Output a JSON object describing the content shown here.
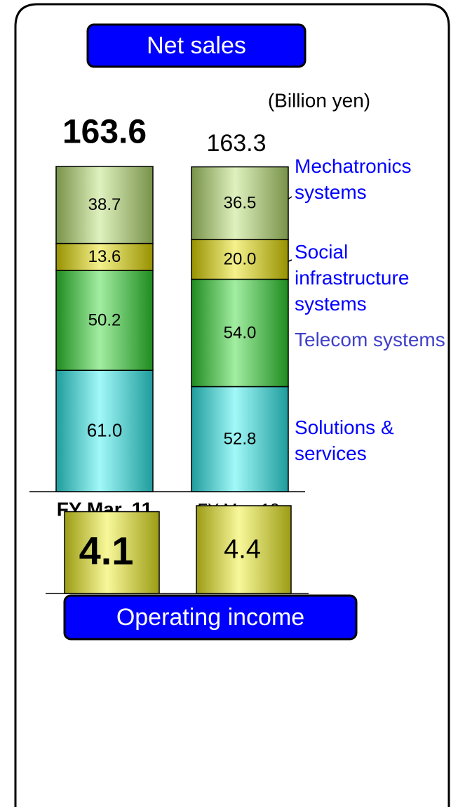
{
  "chart_data": [
    {
      "type": "stacked_bar",
      "title": "Net sales",
      "subtitle": "(Billion yen)",
      "categories": [
        "FY Mar. 11",
        "FY Mar. 10"
      ],
      "totals": [
        163.6,
        163.3
      ],
      "series": [
        {
          "name": "Solutions & services",
          "color": "#30f0f0",
          "label_color": "#0000ff",
          "values": [
            61.0,
            52.8
          ],
          "value_labels": [
            "61.0",
            "52.8"
          ]
        },
        {
          "name": "Telecom systems",
          "color": "#30d830",
          "label_color": "#4040c8",
          "values": [
            50.2,
            54.0
          ],
          "value_labels": [
            "50.2",
            "54.0"
          ]
        },
        {
          "name": "Social infrastructure systems",
          "color": "#e8e000",
          "label_color": "#0000ff",
          "values": [
            13.6,
            20.0
          ],
          "value_labels": [
            "13.6",
            "20.0"
          ]
        },
        {
          "name": "Mechatronics systems",
          "color": "#b8e070",
          "label_color": "#0000ff",
          "values": [
            38.7,
            36.5
          ],
          "value_labels": [
            "38.7",
            "36.5"
          ]
        }
      ]
    },
    {
      "type": "bar",
      "title": "Operating income",
      "categories": [
        null,
        null
      ],
      "values": [
        4.1,
        4.4
      ],
      "color": "#f0f020"
    }
  ]
}
